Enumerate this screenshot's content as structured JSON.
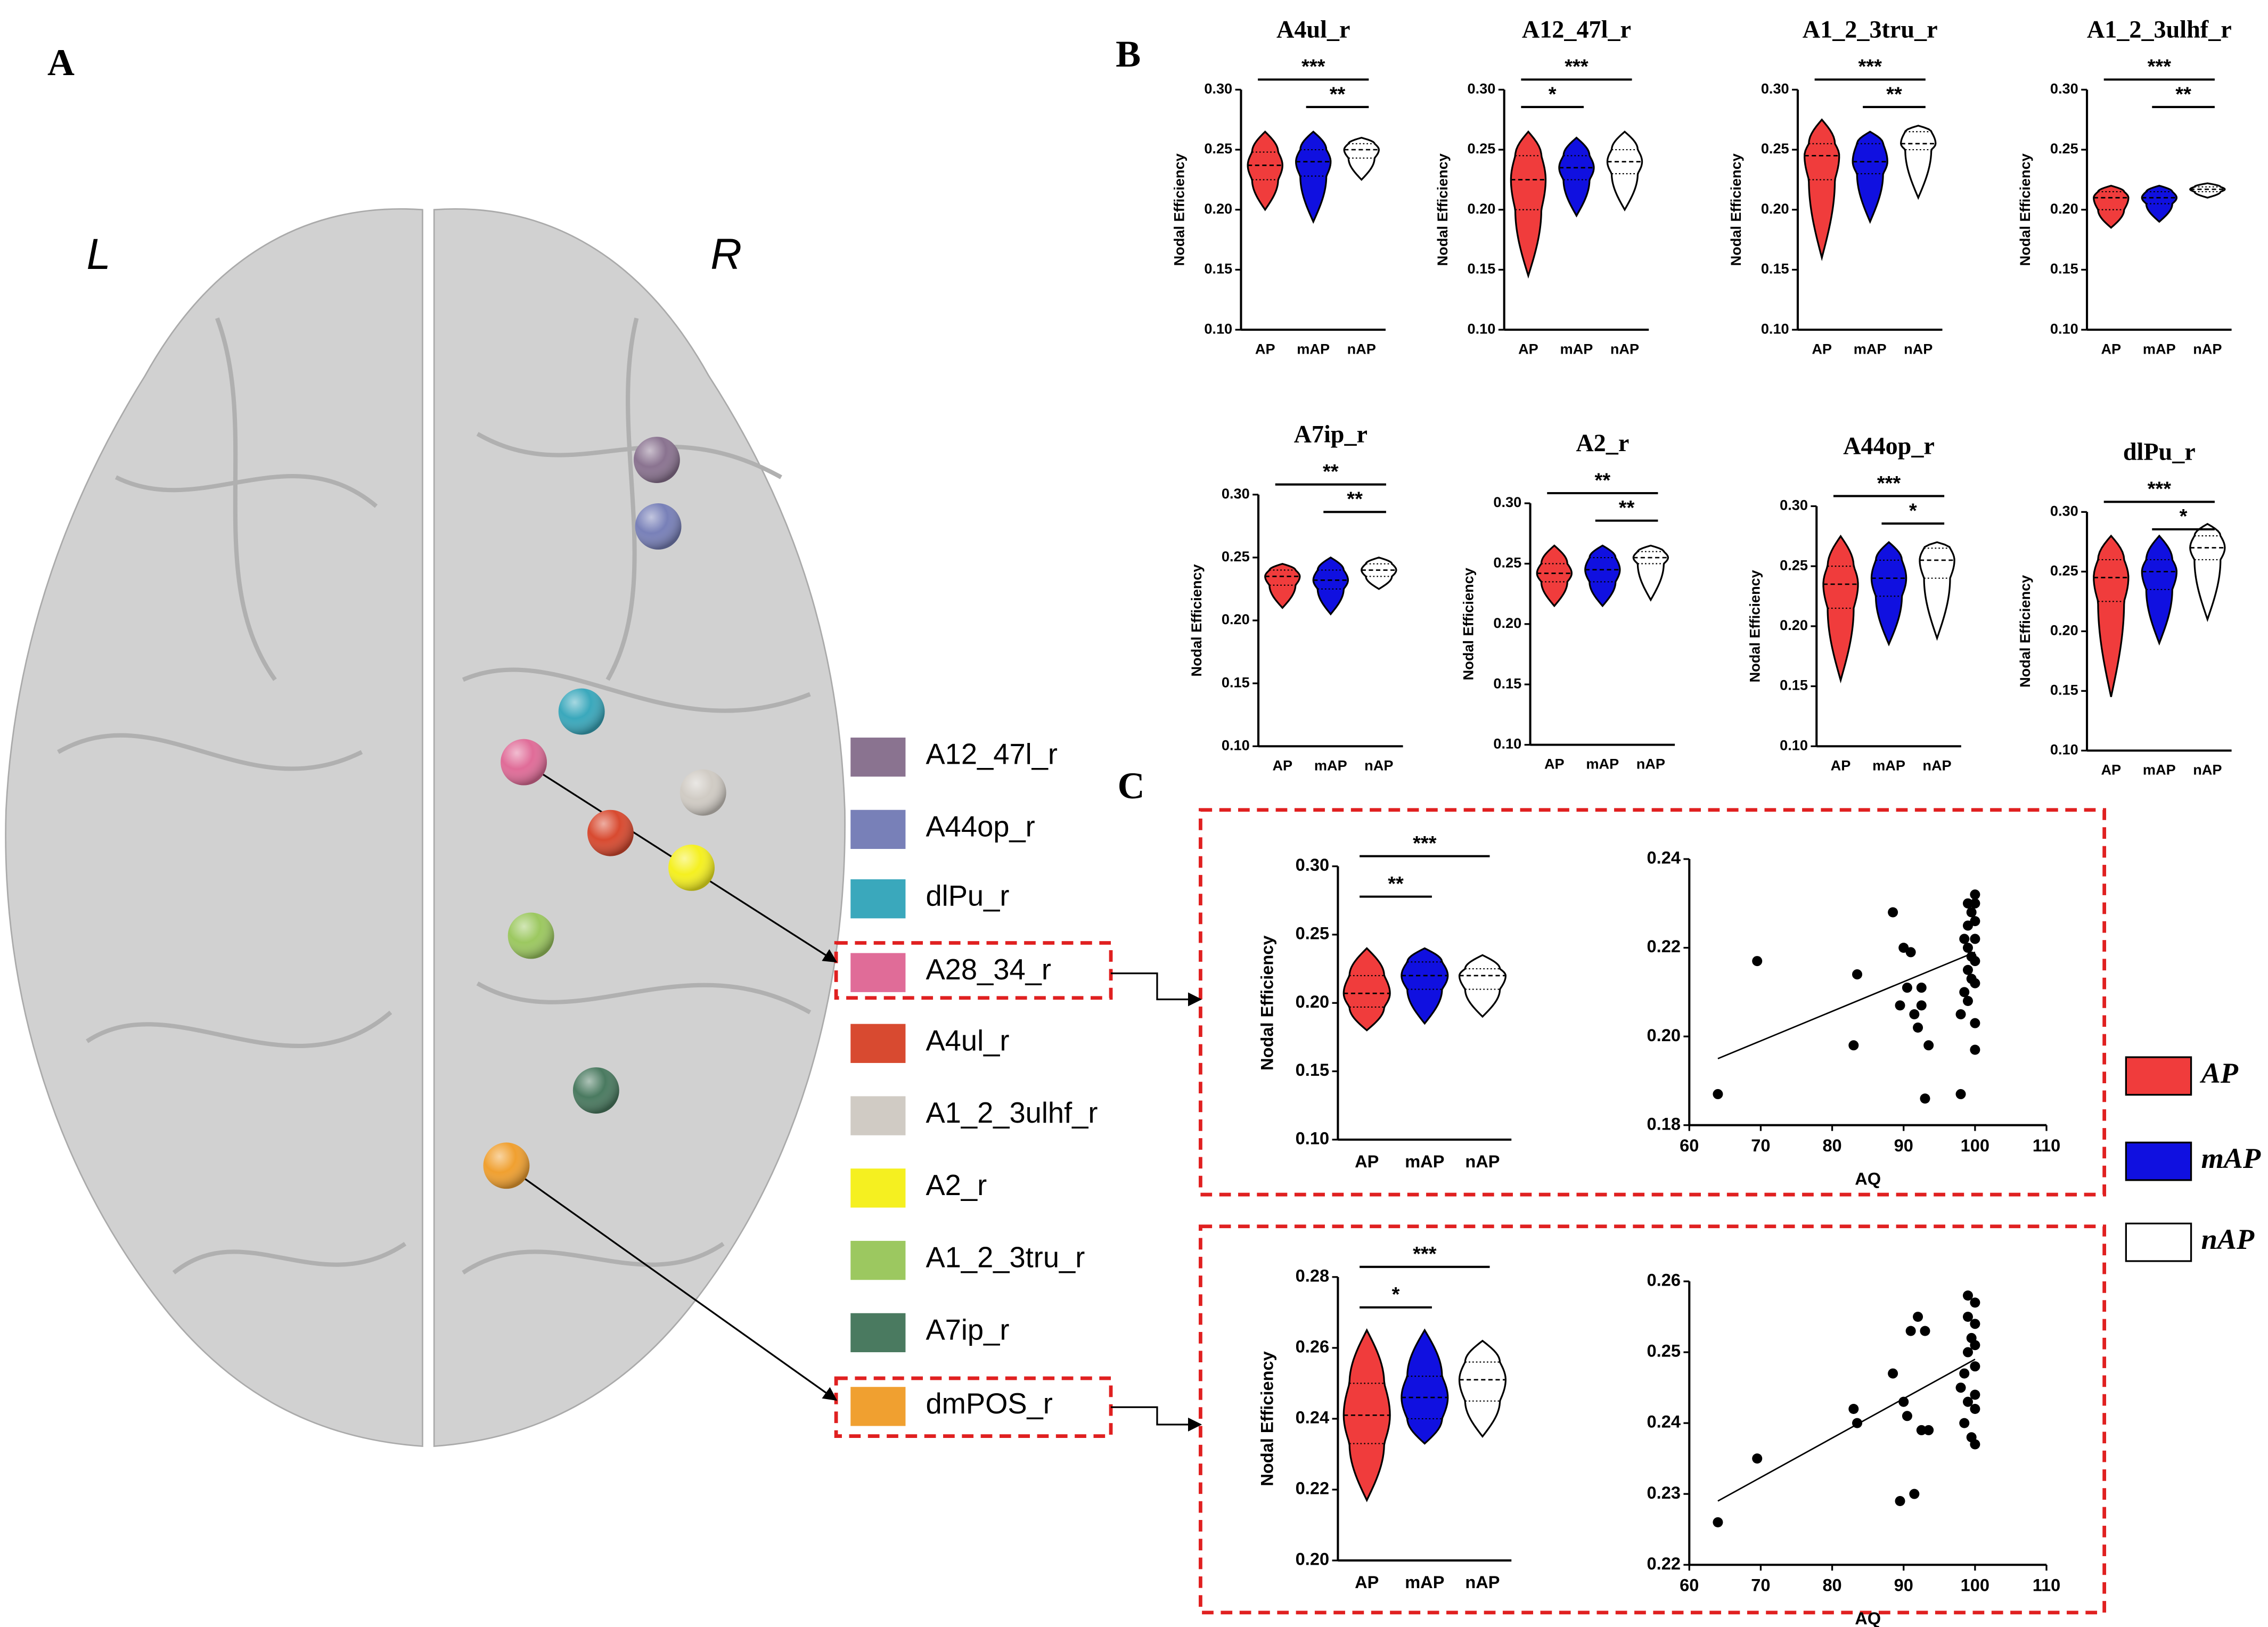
{
  "panels": {
    "a": "A",
    "b": "B",
    "c": "C"
  },
  "brain": {
    "left": "L",
    "right": "R"
  },
  "regions": [
    {
      "name": "A12_47l_r",
      "color": "#8a7390"
    },
    {
      "name": "A44op_r",
      "color": "#7880b8"
    },
    {
      "name": "dlPu_r",
      "color": "#3aa8bc"
    },
    {
      "name": "A28_34_r",
      "color": "#e06c98"
    },
    {
      "name": "A4ul_r",
      "color": "#d84a30"
    },
    {
      "name": "A1_2_3ulhf_r",
      "color": "#d0cbc4"
    },
    {
      "name": "A2_r",
      "color": "#f5f020"
    },
    {
      "name": "A1_2_3tru_r",
      "color": "#9cc860"
    },
    {
      "name": "A7ip_r",
      "color": "#4a7a60"
    },
    {
      "name": "dmPOS_r",
      "color": "#f0a030"
    }
  ],
  "groups": [
    {
      "name": "AP",
      "color": "#f03c3c"
    },
    {
      "name": "mAP",
      "color": "#1010e0"
    },
    {
      "name": "nAP",
      "color": "#ffffff"
    }
  ],
  "chart_data": [
    {
      "type": "violin",
      "title": "A4ul_r",
      "ylabel": "Nodal Efficiency",
      "categories": [
        "AP",
        "mAP",
        "nAP"
      ],
      "series": [
        {
          "color": "#f03c3c",
          "min": 0.2,
          "q1": 0.225,
          "median": 0.237,
          "q3": 0.248,
          "max": 0.265
        },
        {
          "color": "#1010e0",
          "min": 0.19,
          "q1": 0.228,
          "median": 0.24,
          "q3": 0.25,
          "max": 0.265
        },
        {
          "color": "#ffffff",
          "min": 0.225,
          "q1": 0.243,
          "median": 0.25,
          "q3": 0.255,
          "max": 0.26
        }
      ],
      "ylim": [
        0.1,
        0.3
      ],
      "yticks": [
        {
          "value": 0.1,
          "label": "0.10"
        },
        0.15,
        {
          "value": 0.2,
          "label": "0.20"
        },
        0.25,
        {
          "value": 0.3,
          "label": "0.30"
        }
      ],
      "annotations": [
        {
          "text": "***",
          "between": [
            "AP",
            "nAP"
          ]
        },
        {
          "text": "**",
          "between": [
            "mAP",
            "nAP"
          ]
        }
      ]
    },
    {
      "type": "violin",
      "title": "A12_47l_r",
      "ylabel": "Nodal Efficiency",
      "categories": [
        "AP",
        "mAP",
        "nAP"
      ],
      "series": [
        {
          "color": "#f03c3c",
          "min": 0.145,
          "q1": 0.2,
          "median": 0.225,
          "q3": 0.245,
          "max": 0.265
        },
        {
          "color": "#1010e0",
          "min": 0.195,
          "q1": 0.225,
          "median": 0.235,
          "q3": 0.245,
          "max": 0.26
        },
        {
          "color": "#ffffff",
          "min": 0.2,
          "q1": 0.23,
          "median": 0.24,
          "q3": 0.25,
          "max": 0.265
        }
      ],
      "ylim": [
        0.1,
        0.3
      ],
      "yticks": [
        {
          "value": 0.1,
          "label": "0.10"
        },
        0.15,
        {
          "value": 0.2,
          "label": "0.20"
        },
        0.25,
        {
          "value": 0.3,
          "label": "0.30"
        }
      ],
      "annotations": [
        {
          "text": "***",
          "between": [
            "AP",
            "nAP"
          ]
        },
        {
          "text": "*",
          "between": [
            "AP",
            "mAP"
          ]
        }
      ]
    },
    {
      "type": "violin",
      "title": "A1_2_3tru_r",
      "ylabel": "Nodal Efficiency",
      "categories": [
        "AP",
        "mAP",
        "nAP"
      ],
      "series": [
        {
          "color": "#f03c3c",
          "min": 0.16,
          "q1": 0.225,
          "median": 0.245,
          "q3": 0.255,
          "max": 0.275
        },
        {
          "color": "#1010e0",
          "min": 0.19,
          "q1": 0.23,
          "median": 0.24,
          "q3": 0.255,
          "max": 0.265
        },
        {
          "color": "#ffffff",
          "min": 0.21,
          "q1": 0.25,
          "median": 0.255,
          "q3": 0.265,
          "max": 0.27
        }
      ],
      "ylim": [
        0.1,
        0.3
      ],
      "yticks": [
        {
          "value": 0.1,
          "label": "0.10"
        },
        0.15,
        {
          "value": 0.2,
          "label": "0.20"
        },
        0.25,
        {
          "value": 0.3,
          "label": "0.30"
        }
      ],
      "annotations": [
        {
          "text": "***",
          "between": [
            "AP",
            "nAP"
          ]
        },
        {
          "text": "**",
          "between": [
            "mAP",
            "nAP"
          ]
        }
      ]
    },
    {
      "type": "violin",
      "title": "A1_2_3ulhf_r",
      "ylabel": "Nodal Efficiency",
      "categories": [
        "AP",
        "mAP",
        "nAP"
      ],
      "series": [
        {
          "color": "#f03c3c",
          "min": 0.185,
          "q1": 0.2,
          "median": 0.21,
          "q3": 0.215,
          "max": 0.22
        },
        {
          "color": "#1010e0",
          "min": 0.19,
          "q1": 0.205,
          "median": 0.21,
          "q3": 0.215,
          "max": 0.22
        },
        {
          "color": "#ffffff",
          "min": 0.21,
          "q1": 0.215,
          "median": 0.217,
          "q3": 0.219,
          "max": 0.222
        }
      ],
      "ylim": [
        0.1,
        0.3
      ],
      "yticks": [
        {
          "value": 0.1,
          "label": "0.10"
        },
        0.15,
        {
          "value": 0.2,
          "label": "0.20"
        },
        0.25,
        {
          "value": 0.3,
          "label": "0.30"
        }
      ],
      "annotations": [
        {
          "text": "***",
          "between": [
            "AP",
            "nAP"
          ]
        },
        {
          "text": "**",
          "between": [
            "mAP",
            "nAP"
          ]
        }
      ]
    },
    {
      "type": "violin",
      "title": "A7ip_r",
      "ylabel": "Nodal Efficiency",
      "categories": [
        "AP",
        "mAP",
        "nAP"
      ],
      "series": [
        {
          "color": "#f03c3c",
          "min": 0.21,
          "q1": 0.228,
          "median": 0.235,
          "q3": 0.24,
          "max": 0.245
        },
        {
          "color": "#1010e0",
          "min": 0.205,
          "q1": 0.225,
          "median": 0.232,
          "q3": 0.24,
          "max": 0.25
        },
        {
          "color": "#ffffff",
          "min": 0.225,
          "q1": 0.235,
          "median": 0.24,
          "q3": 0.245,
          "max": 0.25
        }
      ],
      "ylim": [
        0.1,
        0.3
      ],
      "yticks": [
        {
          "value": 0.1,
          "label": "0.10"
        },
        0.15,
        {
          "value": 0.2,
          "label": "0.20"
        },
        0.25,
        {
          "value": 0.3,
          "label": "0.30"
        }
      ],
      "annotations": [
        {
          "text": "**",
          "between": [
            "AP",
            "nAP"
          ]
        },
        {
          "text": "**",
          "between": [
            "mAP",
            "nAP"
          ]
        }
      ]
    },
    {
      "type": "violin",
      "title": "A2_r",
      "ylabel": "Nodal Efficiency",
      "categories": [
        "AP",
        "mAP",
        "nAP"
      ],
      "series": [
        {
          "color": "#f03c3c",
          "min": 0.215,
          "q1": 0.235,
          "median": 0.242,
          "q3": 0.25,
          "max": 0.265
        },
        {
          "color": "#1010e0",
          "min": 0.215,
          "q1": 0.235,
          "median": 0.245,
          "q3": 0.255,
          "max": 0.265
        },
        {
          "color": "#ffffff",
          "min": 0.22,
          "q1": 0.25,
          "median": 0.255,
          "q3": 0.26,
          "max": 0.265
        }
      ],
      "ylim": [
        0.1,
        0.3
      ],
      "yticks": [
        {
          "value": 0.1,
          "label": "0.10"
        },
        0.15,
        {
          "value": 0.2,
          "label": "0.20"
        },
        0.25,
        {
          "value": 0.3,
          "label": "0.30"
        }
      ],
      "annotations": [
        {
          "text": "**",
          "between": [
            "AP",
            "nAP"
          ]
        },
        {
          "text": "**",
          "between": [
            "mAP",
            "nAP"
          ]
        }
      ]
    },
    {
      "type": "violin",
      "title": "A44op_r",
      "ylabel": "Nodal Efficiency",
      "categories": [
        "AP",
        "mAP",
        "nAP"
      ],
      "series": [
        {
          "color": "#f03c3c",
          "min": 0.155,
          "q1": 0.215,
          "median": 0.235,
          "q3": 0.25,
          "max": 0.275
        },
        {
          "color": "#1010e0",
          "min": 0.185,
          "q1": 0.225,
          "median": 0.24,
          "q3": 0.255,
          "max": 0.27
        },
        {
          "color": "#ffffff",
          "min": 0.19,
          "q1": 0.24,
          "median": 0.255,
          "q3": 0.265,
          "max": 0.27
        }
      ],
      "ylim": [
        0.1,
        0.3
      ],
      "yticks": [
        {
          "value": 0.1,
          "label": "0.10"
        },
        0.15,
        {
          "value": 0.2,
          "label": "0.20"
        },
        0.25,
        {
          "value": 0.3,
          "label": "0.30"
        }
      ],
      "annotations": [
        {
          "text": "***",
          "between": [
            "AP",
            "nAP"
          ]
        },
        {
          "text": "*",
          "between": [
            "mAP",
            "nAP"
          ]
        }
      ]
    },
    {
      "type": "violin",
      "title": "dlPu_r",
      "ylabel": "Nodal Efficiency",
      "categories": [
        "AP",
        "mAP",
        "nAP"
      ],
      "series": [
        {
          "color": "#f03c3c",
          "min": 0.145,
          "q1": 0.225,
          "median": 0.245,
          "q3": 0.26,
          "max": 0.28
        },
        {
          "color": "#1010e0",
          "min": 0.19,
          "q1": 0.235,
          "median": 0.25,
          "q3": 0.26,
          "max": 0.28
        },
        {
          "color": "#ffffff",
          "min": 0.21,
          "q1": 0.26,
          "median": 0.27,
          "q3": 0.28,
          "max": 0.29
        }
      ],
      "ylim": [
        0.1,
        0.3
      ],
      "yticks": [
        {
          "value": 0.1,
          "label": "0.10"
        },
        0.15,
        {
          "value": 0.2,
          "label": "0.20"
        },
        0.25,
        {
          "value": 0.3,
          "label": "0.30"
        }
      ],
      "annotations": [
        {
          "text": "***",
          "between": [
            "AP",
            "nAP"
          ]
        },
        {
          "text": "*",
          "between": [
            "mAP",
            "nAP"
          ]
        }
      ]
    },
    {
      "type": "violin",
      "ylabel": "Nodal Efficiency",
      "categories": [
        "AP",
        "mAP",
        "nAP"
      ],
      "series": [
        {
          "color": "#f03c3c",
          "min": 0.18,
          "q1": 0.197,
          "median": 0.207,
          "q3": 0.22,
          "max": 0.24
        },
        {
          "color": "#1010e0",
          "min": 0.185,
          "q1": 0.21,
          "median": 0.22,
          "q3": 0.23,
          "max": 0.24
        },
        {
          "color": "#ffffff",
          "min": 0.19,
          "q1": 0.21,
          "median": 0.22,
          "q3": 0.225,
          "max": 0.235
        }
      ],
      "ylim": [
        0.1,
        0.3
      ],
      "yticks": [
        {
          "value": 0.1,
          "label": "0.10"
        },
        0.15,
        {
          "value": 0.2,
          "label": "0.20"
        },
        0.25,
        {
          "value": 0.3,
          "label": "0.30"
        }
      ],
      "annotations": [
        {
          "text": "***",
          "between": [
            "AP",
            "nAP"
          ]
        },
        {
          "text": "**",
          "between": [
            "AP",
            "mAP"
          ]
        }
      ]
    },
    {
      "type": "scatter",
      "xlabel": "AQ",
      "x": [
        64,
        69.5,
        83,
        83.5,
        88.5,
        89.5,
        90,
        90.5,
        91,
        91.5,
        92,
        92.5,
        92.5,
        93,
        93.5,
        98,
        98,
        98.5,
        99,
        99,
        99,
        99.5,
        99.5,
        100,
        100,
        100,
        100,
        100,
        99,
        100,
        99.5,
        100,
        98.5,
        99,
        100
      ],
      "y": [
        0.187,
        0.217,
        0.198,
        0.214,
        0.228,
        0.207,
        0.22,
        0.211,
        0.219,
        0.205,
        0.202,
        0.207,
        0.211,
        0.186,
        0.198,
        0.187,
        0.205,
        0.21,
        0.215,
        0.22,
        0.225,
        0.228,
        0.218,
        0.23,
        0.222,
        0.212,
        0.203,
        0.197,
        0.208,
        0.226,
        0.213,
        0.217,
        0.222,
        0.23,
        0.232
      ],
      "trend": {
        "x": [
          64,
          100
        ],
        "y": [
          0.195,
          0.219
        ]
      },
      "xlim": [
        60,
        110
      ],
      "xticks": [
        60,
        70,
        80,
        90,
        100,
        110
      ],
      "ylim": [
        0.18,
        0.24
      ],
      "yticks": [
        0.18,
        {
          "value": 0.2,
          "label": "0.20"
        },
        0.22,
        0.24
      ]
    },
    {
      "type": "violin",
      "ylabel": "Nodal Efficiency",
      "categories": [
        "AP",
        "mAP",
        "nAP"
      ],
      "series": [
        {
          "color": "#f03c3c",
          "min": 0.217,
          "q1": 0.233,
          "median": 0.241,
          "q3": 0.25,
          "max": 0.265
        },
        {
          "color": "#1010e0",
          "min": 0.233,
          "q1": 0.24,
          "median": 0.246,
          "q3": 0.252,
          "max": 0.265
        },
        {
          "color": "#ffffff",
          "min": 0.235,
          "q1": 0.245,
          "median": 0.251,
          "q3": 0.256,
          "max": 0.262
        }
      ],
      "ylim": [
        0.2,
        0.28
      ],
      "yticks": [
        {
          "value": 0.2,
          "label": "0.20"
        },
        0.22,
        0.24,
        0.26,
        0.28
      ],
      "annotations": [
        {
          "text": "***",
          "between": [
            "AP",
            "nAP"
          ]
        },
        {
          "text": "*",
          "between": [
            "AP",
            "mAP"
          ]
        }
      ]
    },
    {
      "type": "scatter",
      "xlabel": "AQ",
      "x": [
        64,
        69.5,
        83,
        83.5,
        88.5,
        89.5,
        90,
        90.5,
        91,
        91.5,
        92,
        92.5,
        93,
        93.5,
        98,
        98.5,
        99,
        99,
        99.5,
        100,
        100,
        100,
        100,
        99,
        99.5,
        100,
        98.5,
        100,
        99,
        100
      ],
      "y": [
        0.226,
        0.235,
        0.242,
        0.24,
        0.247,
        0.229,
        0.243,
        0.241,
        0.253,
        0.23,
        0.255,
        0.239,
        0.253,
        0.239,
        0.245,
        0.24,
        0.25,
        0.255,
        0.238,
        0.257,
        0.248,
        0.244,
        0.237,
        0.258,
        0.252,
        0.251,
        0.247,
        0.242,
        0.243,
        0.254
      ],
      "trend": {
        "x": [
          64,
          100
        ],
        "y": [
          0.229,
          0.249
        ]
      },
      "xlim": [
        60,
        110
      ],
      "xticks": [
        60,
        70,
        80,
        90,
        100,
        110
      ],
      "ylim": [
        0.22,
        0.26
      ],
      "yticks": [
        0.22,
        0.23,
        0.24,
        0.25,
        0.26
      ]
    }
  ]
}
